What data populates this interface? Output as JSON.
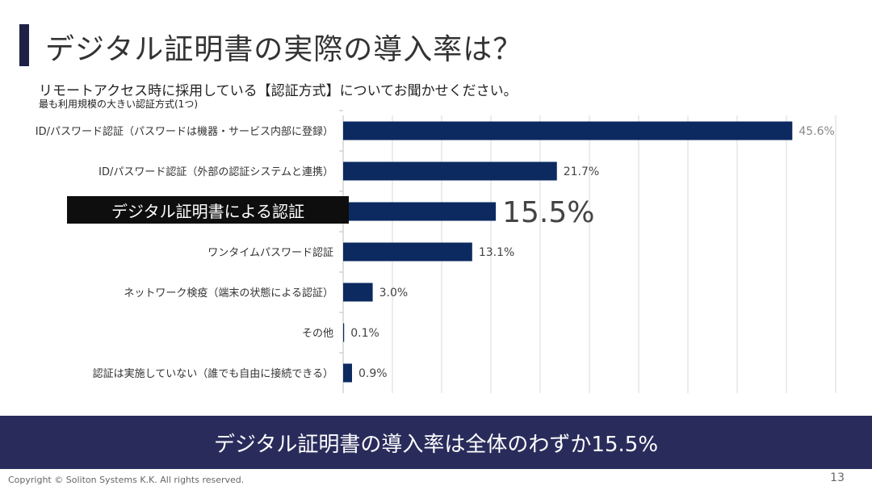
{
  "slide": {
    "title": "デジタル証明書の実際の導入率は？",
    "question": "リモートアクセス時に採用している【認証方式】についてお聞かせください。",
    "subtitle": "最も利用規模の大きい認証方式(1つ)",
    "highlight_label": "デジタル証明書による認証",
    "banner": "デジタル証明書の導入率は全体のわずか15.5%",
    "copyright": "Copyright © Soliton Systems K.K. All rights reserved.",
    "page_number": "13"
  },
  "colors": {
    "bar": "#0c2a60",
    "banner": "#292c5b",
    "highlight": "#0e0e0e"
  },
  "chart_data": {
    "type": "bar",
    "orientation": "horizontal",
    "categories": [
      "ID/パスワード認証（パスワードは機器・サービス内部に登録）",
      "ID/パスワード認証（外部の認証システムと連携）",
      "デジタル証明書による認証",
      "ワンタイムパスワード認証",
      "ネットワーク検疫（端末の状態による認証）",
      "その他",
      "認証は実施していない（誰でも自由に接続できる）"
    ],
    "values": [
      45.6,
      21.7,
      15.5,
      13.1,
      3.0,
      0.1,
      0.9
    ],
    "labels": [
      "45.6%",
      "21.7%",
      "15.5%",
      "13.1%",
      "3.0%",
      "0.1%",
      "0.9%"
    ],
    "highlight_index": 2,
    "xlim": [
      0,
      50
    ],
    "grid_step": 5,
    "grid": true
  }
}
